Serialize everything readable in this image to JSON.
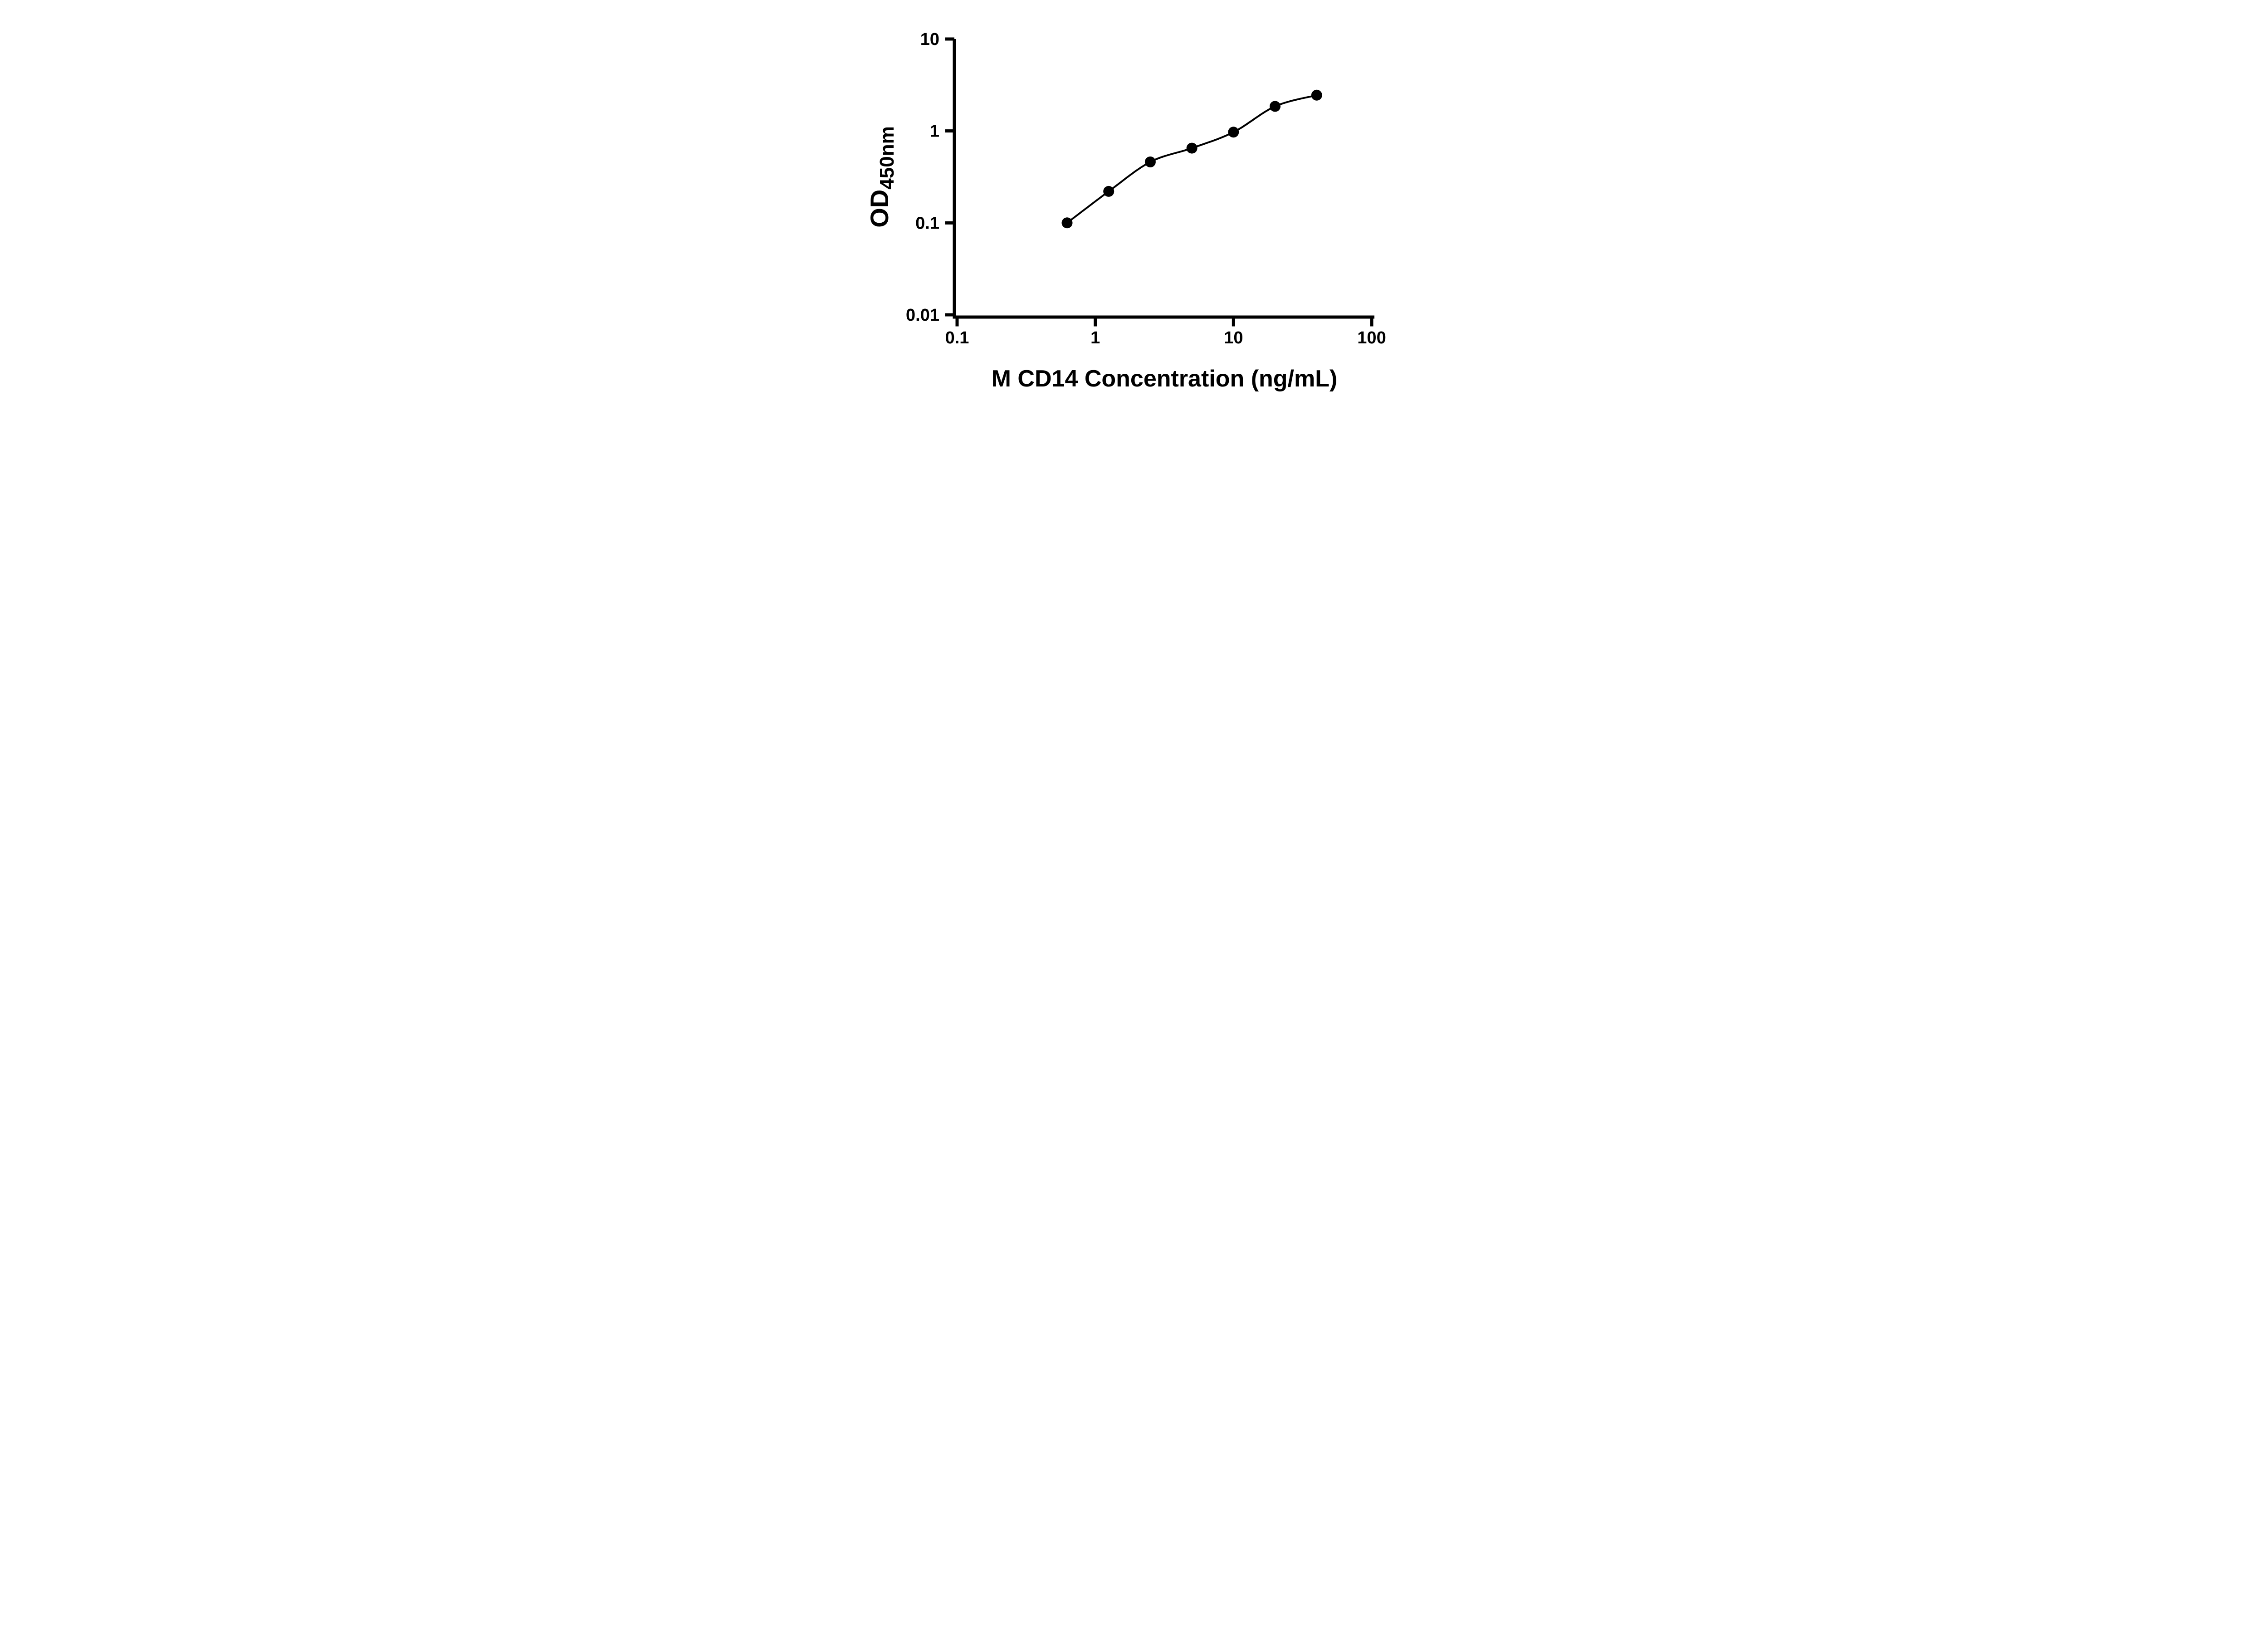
{
  "page": {
    "background": "#ffffff"
  },
  "chart_data": {
    "type": "scatter",
    "title": "",
    "x": [
      0.625,
      1.25,
      2.5,
      5,
      10,
      20,
      40
    ],
    "y": [
      0.1,
      0.22,
      0.46,
      0.65,
      0.97,
      1.85,
      2.45
    ],
    "fit_line": true,
    "fit_line_style": "smooth curve through points",
    "xlabel": "M CD14 Concentration (ng/mL)",
    "ylabel": {
      "main": "OD",
      "subscript": "450nm"
    },
    "x_scale": "log",
    "y_scale": "log",
    "xlim": [
      0.1,
      100
    ],
    "ylim": [
      0.01,
      10
    ],
    "x_ticks": {
      "values": [
        0.1,
        1,
        10,
        100
      ],
      "labels": [
        "0.1",
        "1",
        "10",
        "100"
      ]
    },
    "y_ticks": {
      "values": [
        0.01,
        0.1,
        1,
        10
      ],
      "labels": [
        "0.01",
        "0.1",
        "1",
        "10"
      ]
    },
    "grid": false,
    "legend": null,
    "marker": {
      "shape": "circle",
      "color": "#000000"
    },
    "line_color": "#000000",
    "axis_color": "#000000"
  }
}
